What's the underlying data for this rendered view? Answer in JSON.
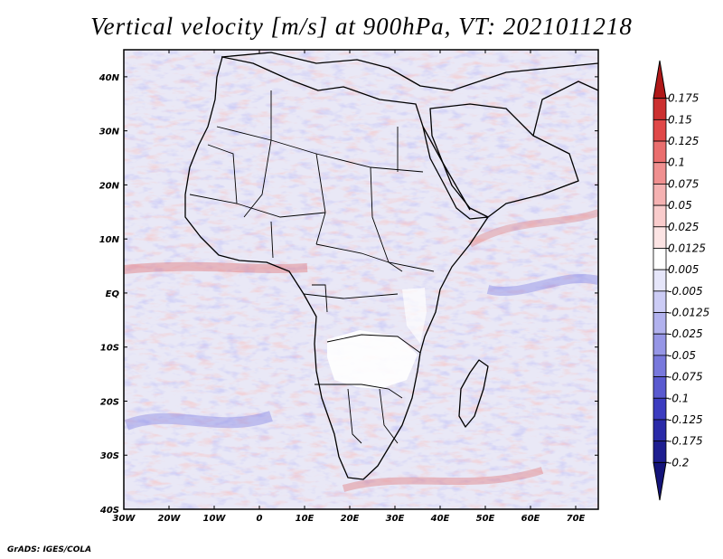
{
  "title": "Vertical velocity [m/s] at 900hPa, VT: 2021011218",
  "footer": "GrADS: IGES/COLA",
  "map": {
    "projection": "latlon",
    "lon_range": [
      -30,
      75
    ],
    "lat_range": [
      -40,
      45
    ],
    "lon_ticks": [
      "30W",
      "20W",
      "10W",
      "0",
      "10E",
      "20E",
      "30E",
      "40E",
      "50E",
      "60E",
      "70E"
    ],
    "lat_ticks": [
      "40S",
      "30S",
      "20S",
      "10S",
      "EQ",
      "10N",
      "20N",
      "30N",
      "40N"
    ]
  },
  "colorbar": {
    "levels": [
      "0.175",
      "0.15",
      "0.125",
      "0.1",
      "0.075",
      "0.05",
      "0.025",
      "0.0125",
      "0.005",
      "-0.005",
      "-0.0125",
      "-0.025",
      "-0.05",
      "-0.075",
      "-0.1",
      "-0.125",
      "-0.175",
      "-0.2"
    ],
    "colors": [
      "#b01818",
      "#cc3030",
      "#e04848",
      "#ea6e6e",
      "#f09090",
      "#f5b2b2",
      "#f9cccc",
      "#fce4e4",
      "#ffffff",
      "#e6e6fa",
      "#ccccf5",
      "#b2b2ee",
      "#9696e6",
      "#7878dc",
      "#5a5ad0",
      "#3c3cc0",
      "#2a2aa8",
      "#1e1e90",
      "#14147a"
    ]
  }
}
